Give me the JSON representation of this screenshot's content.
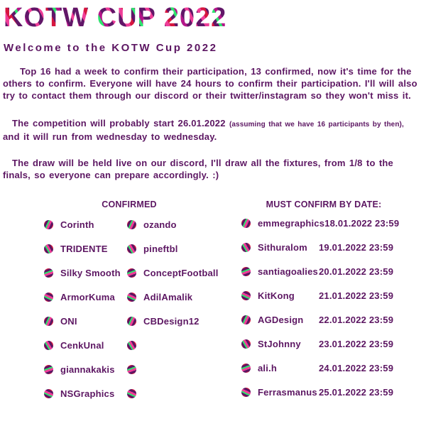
{
  "page": {
    "title": "KOTW CUP 2022",
    "subtitle": "Welcome to the KOTW Cup 2022"
  },
  "paragraphs": {
    "p1": "Top 16 had a week to confirm their participation, 13 confirmed, now it's time for the others to confirm. Everyone will have 24 hours to confirm their participation. I'll will also try to contact them through our discord or their twitter/instagram so they won't miss it.",
    "p2_main": "The competition will probably start 26.01.2022",
    "p2_note": "(assuming that we have 16 participants by then),",
    "p2_tail": "and it will run from wednesday to wednesday.",
    "p3": "The draw will be held live on our discord, I'll draw all the fixtures, from 1/8 to the finals, so everyone can prepare accordingly. :)"
  },
  "confirmed": {
    "header": "CONFIRMED",
    "column1": [
      "Corinth",
      "TRIDENTE",
      "Silky Smooth",
      "ArmorKuma",
      "ONI",
      "CenkUnal",
      "giannakakis",
      "NSGraphics"
    ],
    "column2": [
      "ozando",
      "pineftbl",
      "ConceptFootball",
      "AdilAmalik",
      "CBDesign12",
      "",
      "",
      ""
    ]
  },
  "must_confirm": {
    "header": "MUST CONFIRM BY DATE:",
    "items": [
      {
        "name": "emmegraphics",
        "deadline": "18.01.2022 23:59"
      },
      {
        "name": "Sithuralom",
        "deadline": "19.01.2022 23:59"
      },
      {
        "name": "santiagoalies",
        "deadline": "20.01.2022 23:59"
      },
      {
        "name": "KitKong",
        "deadline": "21.01.2022 23:59"
      },
      {
        "name": "AGDesign",
        "deadline": "22.01.2022 23:59"
      },
      {
        "name": "StJohnny",
        "deadline": "23.01.2022 23:59"
      },
      {
        "name": "ali.h",
        "deadline": "24.01.2022 23:59"
      },
      {
        "name": "Ferrasmanus",
        "deadline": "25.01.2022 23:59"
      }
    ]
  },
  "icons": {
    "participant_bullet": "striped-ball-icon"
  },
  "colors": {
    "text_purple": "#5c1662",
    "pattern_purple": "#611768",
    "pattern_pink": "#ef3d98",
    "pattern_green": "#2de56e",
    "pattern_red": "#d6173f",
    "pattern_magenta": "#b5158a",
    "background": "#ffffff"
  }
}
